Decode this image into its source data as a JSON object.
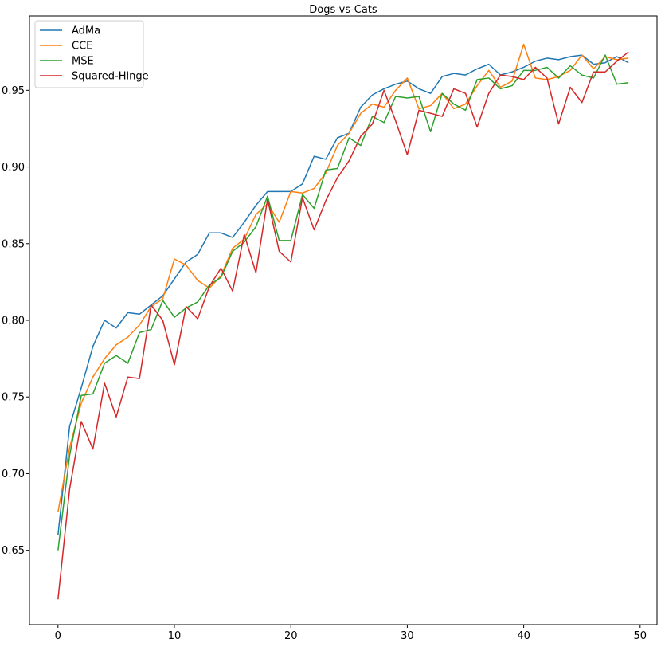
{
  "chart_data": {
    "type": "line",
    "title": "Dogs-vs-Cats",
    "xlabel": "",
    "ylabel": "",
    "xlim": [
      -2.45,
      51.45
    ],
    "ylim": [
      0.6015,
      0.9985
    ],
    "xticks": [
      0,
      10,
      20,
      30,
      40,
      50
    ],
    "xtick_labels": [
      "0",
      "10",
      "20",
      "30",
      "40",
      "50"
    ],
    "yticks": [
      0.65,
      0.7,
      0.75,
      0.8,
      0.85,
      0.9,
      0.95
    ],
    "ytick_labels": [
      "0.65",
      "0.70",
      "0.75",
      "0.80",
      "0.85",
      "0.90",
      "0.95"
    ],
    "grid": false,
    "legend_position": "top-left",
    "x": [
      0,
      1,
      2,
      3,
      4,
      5,
      6,
      7,
      8,
      9,
      10,
      11,
      12,
      13,
      14,
      15,
      16,
      17,
      18,
      19,
      20,
      21,
      22,
      23,
      24,
      25,
      26,
      27,
      28,
      29,
      30,
      31,
      32,
      33,
      34,
      35,
      36,
      37,
      38,
      39,
      40,
      41,
      42,
      43,
      44,
      45,
      46,
      47,
      48,
      49
    ],
    "series": [
      {
        "name": "AdMa",
        "color": "#1f77b4",
        "values": [
          0.66,
          0.731,
          0.756,
          0.783,
          0.8,
          0.795,
          0.805,
          0.804,
          0.81,
          0.816,
          0.827,
          0.838,
          0.843,
          0.857,
          0.857,
          0.854,
          0.864,
          0.875,
          0.884,
          0.884,
          0.884,
          0.889,
          0.907,
          0.905,
          0.919,
          0.922,
          0.939,
          0.947,
          0.951,
          0.954,
          0.956,
          0.951,
          0.948,
          0.959,
          0.961,
          0.96,
          0.964,
          0.967,
          0.96,
          0.962,
          0.965,
          0.969,
          0.971,
          0.97,
          0.972,
          0.973,
          0.967,
          0.968,
          0.972,
          0.968
        ]
      },
      {
        "name": "CCE",
        "color": "#ff7f0e",
        "values": [
          0.675,
          0.717,
          0.746,
          0.763,
          0.775,
          0.784,
          0.789,
          0.797,
          0.809,
          0.814,
          0.84,
          0.836,
          0.826,
          0.821,
          0.829,
          0.847,
          0.853,
          0.869,
          0.876,
          0.864,
          0.884,
          0.883,
          0.886,
          0.896,
          0.914,
          0.922,
          0.935,
          0.941,
          0.939,
          0.95,
          0.958,
          0.938,
          0.94,
          0.948,
          0.938,
          0.941,
          0.953,
          0.963,
          0.952,
          0.956,
          0.98,
          0.958,
          0.957,
          0.959,
          0.963,
          0.973,
          0.964,
          0.972,
          0.97,
          0.971
        ]
      },
      {
        "name": "MSE",
        "color": "#2ca02c",
        "values": [
          0.65,
          0.712,
          0.751,
          0.752,
          0.772,
          0.777,
          0.772,
          0.792,
          0.794,
          0.813,
          0.802,
          0.808,
          0.812,
          0.823,
          0.828,
          0.845,
          0.851,
          0.861,
          0.881,
          0.852,
          0.852,
          0.882,
          0.873,
          0.898,
          0.899,
          0.919,
          0.914,
          0.933,
          0.929,
          0.946,
          0.945,
          0.946,
          0.923,
          0.948,
          0.941,
          0.937,
          0.957,
          0.958,
          0.951,
          0.953,
          0.963,
          0.963,
          0.965,
          0.958,
          0.966,
          0.96,
          0.958,
          0.973,
          0.954,
          0.955
        ]
      },
      {
        "name": "Squared-Hinge",
        "color": "#d62728",
        "values": [
          0.618,
          0.69,
          0.734,
          0.716,
          0.759,
          0.737,
          0.763,
          0.762,
          0.81,
          0.8,
          0.771,
          0.809,
          0.801,
          0.822,
          0.834,
          0.819,
          0.856,
          0.831,
          0.879,
          0.845,
          0.838,
          0.88,
          0.859,
          0.878,
          0.893,
          0.904,
          0.92,
          0.928,
          0.95,
          0.93,
          0.908,
          0.937,
          0.935,
          0.933,
          0.951,
          0.948,
          0.926,
          0.948,
          0.96,
          0.959,
          0.957,
          0.965,
          0.958,
          0.928,
          0.952,
          0.942,
          0.962,
          0.962,
          0.969,
          0.975
        ]
      }
    ]
  }
}
